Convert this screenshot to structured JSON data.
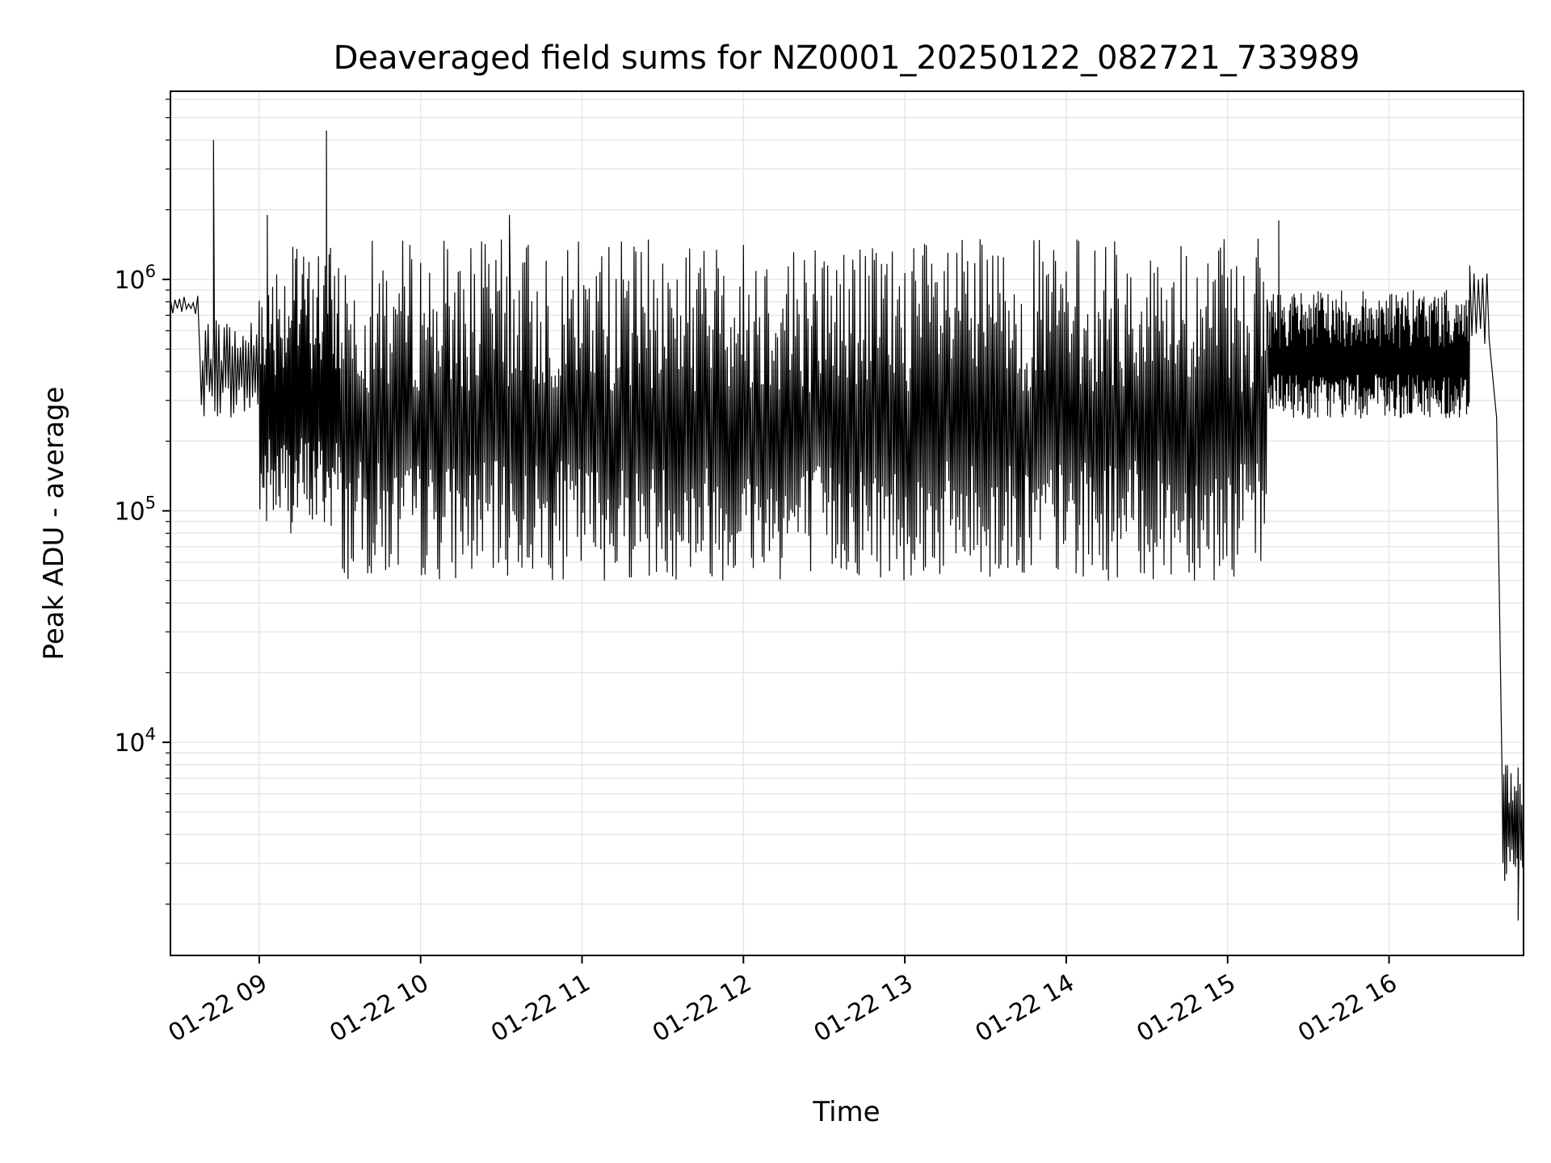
{
  "chart_data": {
    "type": "line",
    "title": "Deaveraged field sums for NZ0001_20250122_082721_733989",
    "xlabel": "Time",
    "ylabel": "Peak ADU - average",
    "yscale": "log",
    "grid": true,
    "line_color": "#000000",
    "grid_color": "#e6e6e6",
    "xlim": [
      "2025-01-22 08:27",
      "2025-01-22 16:50"
    ],
    "ylim": [
      1200,
      6500000
    ],
    "x_ticks": [
      {
        "value": "2025-01-22 09:00",
        "label": "01-22 09"
      },
      {
        "value": "2025-01-22 10:00",
        "label": "01-22 10"
      },
      {
        "value": "2025-01-22 11:00",
        "label": "01-22 11"
      },
      {
        "value": "2025-01-22 12:00",
        "label": "01-22 12"
      },
      {
        "value": "2025-01-22 13:00",
        "label": "01-22 13"
      },
      {
        "value": "2025-01-22 14:00",
        "label": "01-22 14"
      },
      {
        "value": "2025-01-22 15:00",
        "label": "01-22 15"
      },
      {
        "value": "2025-01-22 16:00",
        "label": "01-22 16"
      }
    ],
    "y_ticks": [
      {
        "value": 10000,
        "base": "10",
        "exp": "4"
      },
      {
        "value": 100000,
        "base": "10",
        "exp": "5"
      },
      {
        "value": 1000000,
        "base": "10",
        "exp": "6"
      }
    ],
    "series": [
      {
        "segments": [
          {
            "start": "2025-01-22 08:27",
            "end": "2025-01-22 08:38",
            "low": 700000,
            "high": 850000,
            "density": 12
          },
          {
            "start": "2025-01-22 08:38",
            "end": "2025-01-22 09:00",
            "low": 250000,
            "high": 700000,
            "density": 20
          },
          {
            "start": "2025-01-22 09:00",
            "end": "2025-01-22 09:30",
            "low": 80000,
            "high": 1400000,
            "density": 40
          },
          {
            "start": "2025-01-22 09:30",
            "end": "2025-01-22 15:15",
            "low": 50000,
            "high": 1500000,
            "density": 30
          },
          {
            "start": "2025-01-22 15:15",
            "end": "2025-01-22 16:30",
            "low": 250000,
            "high": 900000,
            "density": 60
          },
          {
            "start": "2025-01-22 16:30",
            "end": "2025-01-22 16:38",
            "low": 500000,
            "high": 1300000,
            "density": 12
          },
          {
            "start": "2025-01-22 16:38",
            "end": "2025-01-22 16:42",
            "low": 180000,
            "high": 600000,
            "density": 6
          },
          {
            "start": "2025-01-22 16:42",
            "end": "2025-01-22 16:50",
            "low": 2500,
            "high": 8000,
            "density": 30
          }
        ],
        "spikes": [
          {
            "x": "2025-01-22 08:43",
            "y": 4000000
          },
          {
            "x": "2025-01-22 09:25",
            "y": 4400000
          },
          {
            "x": "2025-01-22 09:03",
            "y": 1900000
          },
          {
            "x": "2025-01-22 10:33",
            "y": 1900000
          },
          {
            "x": "2025-01-22 15:19",
            "y": 1800000
          },
          {
            "x": "2025-01-22 16:48",
            "y": 1700
          }
        ]
      }
    ]
  }
}
